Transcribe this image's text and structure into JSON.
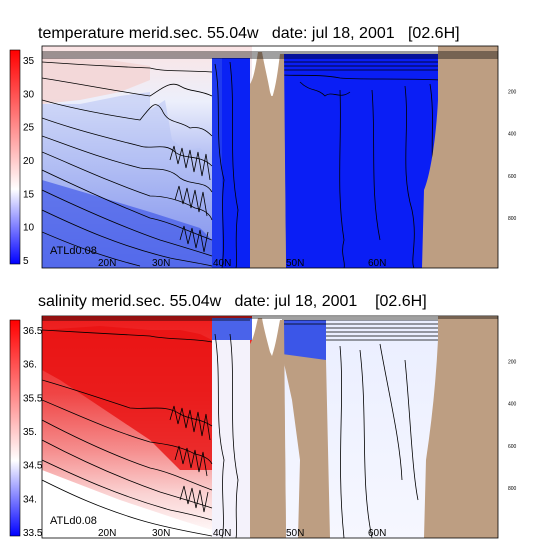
{
  "chart_data": [
    {
      "type": "heatmap",
      "title": "temperature merid.sec. 55.04w   date: jul 18, 2001   [02.6H]",
      "label": "ATLd0.08",
      "xlabel": "",
      "ylabel": "",
      "x_ticks": [
        "20N",
        "30N",
        "40N",
        "50N",
        "60N"
      ],
      "y_ticks": [
        "200",
        "400",
        "600",
        "800"
      ],
      "colorbar": {
        "ticks": [
          35,
          30,
          25,
          20,
          15,
          10,
          5
        ],
        "range": [
          4,
          36
        ],
        "colors": {
          "low": "#0000ff",
          "mid": "#ffffff",
          "high": "#ff0000"
        }
      },
      "land_color": "#bd9e82",
      "contour_color": "#000000"
    },
    {
      "type": "heatmap",
      "title": "salinity merid.sec. 55.04w   date: jul 18, 2001    [02.6H]",
      "label": "ATLd0.08",
      "xlabel": "",
      "ylabel": "",
      "x_ticks": [
        "20N",
        "30N",
        "40N",
        "50N",
        "60N"
      ],
      "y_ticks": [
        "200",
        "400",
        "600",
        "800"
      ],
      "colorbar": {
        "ticks": [
          "36.5",
          "36.",
          "35.5",
          "35.",
          "34.5",
          "34.",
          "33.5"
        ],
        "range": [
          33.5,
          36.7
        ],
        "colors": {
          "low": "#0000ff",
          "mid": "#ffffff",
          "high": "#ff0000"
        }
      },
      "land_color": "#bd9e82",
      "contour_color": "#000000"
    }
  ]
}
